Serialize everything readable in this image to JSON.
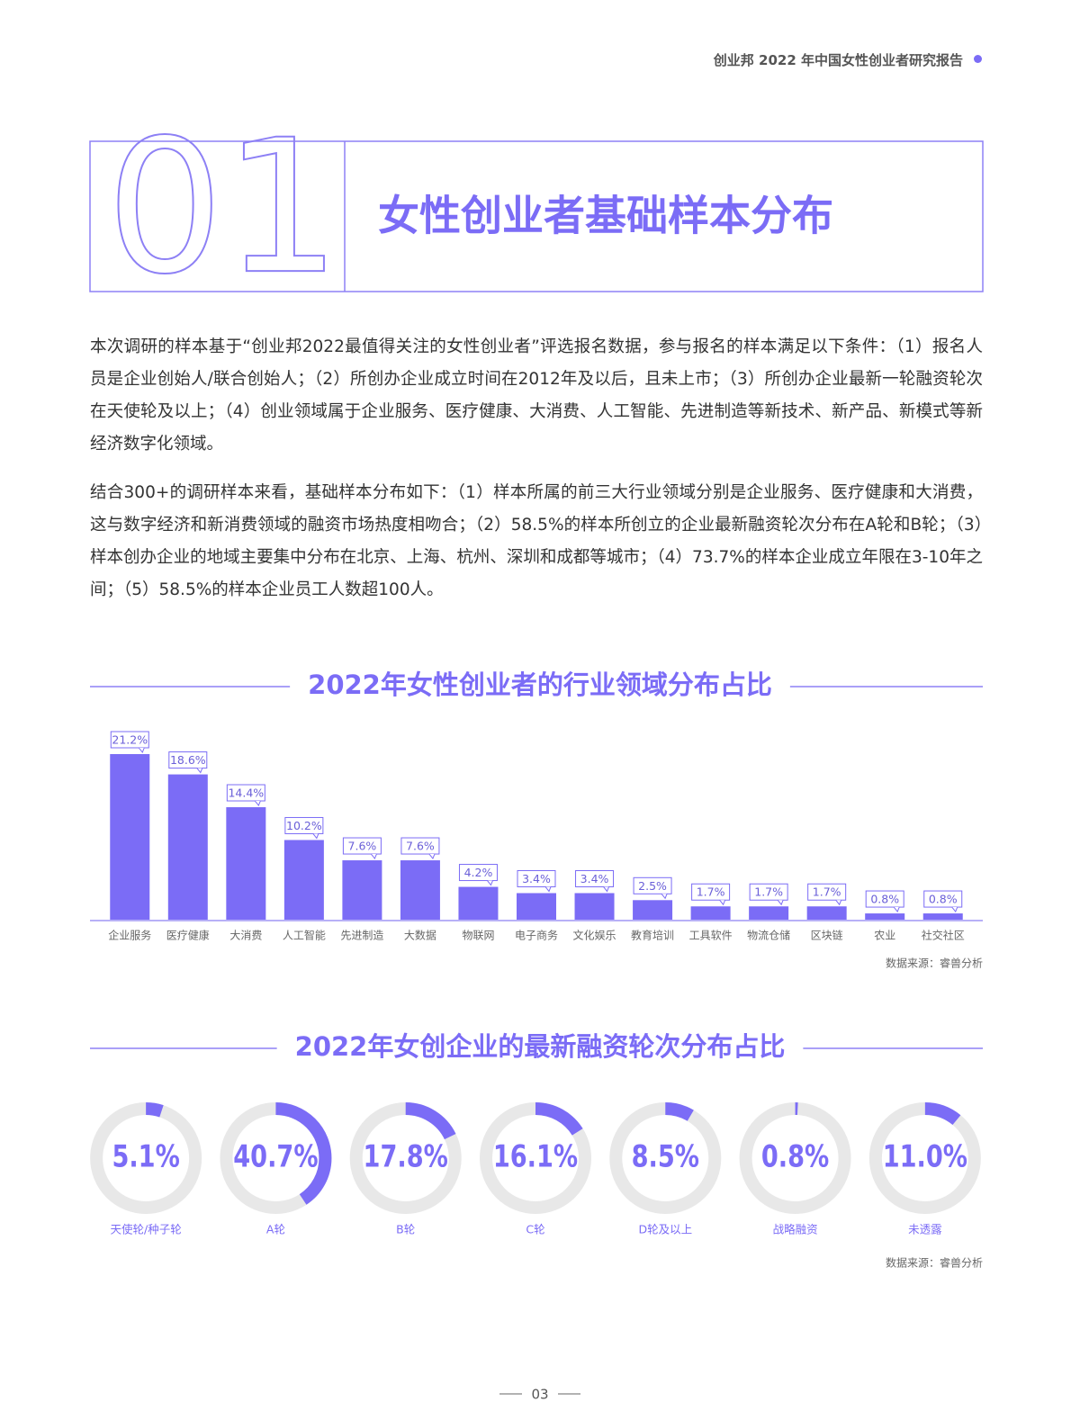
{
  "header": {
    "title": "创业邦 2022 年中国女性创业者研究报告"
  },
  "section": {
    "number": "01",
    "title": "女性创业者基础样本分布"
  },
  "paragraphs": [
    "本次调研的样本基于“创业邦2022最值得关注的女性创业者”评选报名数据，参与报名的样本满足以下条件：（1）报名人员是企业创始人/联合创始人；（2）所创办企业成立时间在2012年及以后，且未上市；（3）所创办企业最新一轮融资轮次在天使轮及以上；（4）创业领域属于企业服务、医疗健康、大消费、人工智能、先进制造等新技术、新产品、新模式等新经济数字化领域。",
    "结合300+的调研样本来看，基础样本分布如下：（1）样本所属的前三大行业领域分别是企业服务、医疗健康和大消费，这与数字经济和新消费领域的融资市场热度相吻合；（2）58.5%的样本所创立的企业最新融资轮次分布在A轮和B轮；（3）样本创办企业的地域主要集中分布在北京、上海、杭州、深圳和成都等城市；（4）73.7%的样本企业成立年限在3-10年之间；（5）58.5%的样本企业员工人数超100人。"
  ],
  "chart_data": [
    {
      "type": "bar",
      "title": "2022年女性创业者的行业领域分布占比",
      "color": "#7b6cf6",
      "categories": [
        "企业服务",
        "医疗健康",
        "大消费",
        "人工智能",
        "先进制造",
        "大数据",
        "物联网",
        "电子商务",
        "文化娱乐",
        "教育培训",
        "工具软件",
        "物流仓储",
        "区块链",
        "农业",
        "社交社区"
      ],
      "values": [
        21.2,
        18.6,
        14.4,
        10.2,
        7.6,
        7.6,
        4.2,
        3.4,
        3.4,
        2.5,
        1.7,
        1.7,
        1.7,
        0.8,
        0.8
      ],
      "value_labels": [
        "21.2%",
        "18.6%",
        "14.4%",
        "10.2%",
        "7.6%",
        "7.6%",
        "4.2%",
        "3.4%",
        "3.4%",
        "2.5%",
        "1.7%",
        "1.7%",
        "1.7%",
        "0.8%",
        "0.8%"
      ],
      "source": "数据来源：睿兽分析"
    },
    {
      "type": "donut",
      "title": "2022年女创企业的最新融资轮次分布占比",
      "color": "#7b6cf6",
      "categories": [
        "天使轮/种子轮",
        "A轮",
        "B轮",
        "C轮",
        "D轮及以上",
        "战略融资",
        "未透露"
      ],
      "values": [
        5.1,
        40.7,
        17.8,
        16.1,
        8.5,
        0.8,
        11.0
      ],
      "value_labels": [
        "5.1%",
        "40.7%",
        "17.8%",
        "16.1%",
        "8.5%",
        "0.8%",
        "11.0%"
      ],
      "source": "数据来源：睿兽分析"
    }
  ],
  "footer": {
    "page": "03"
  }
}
